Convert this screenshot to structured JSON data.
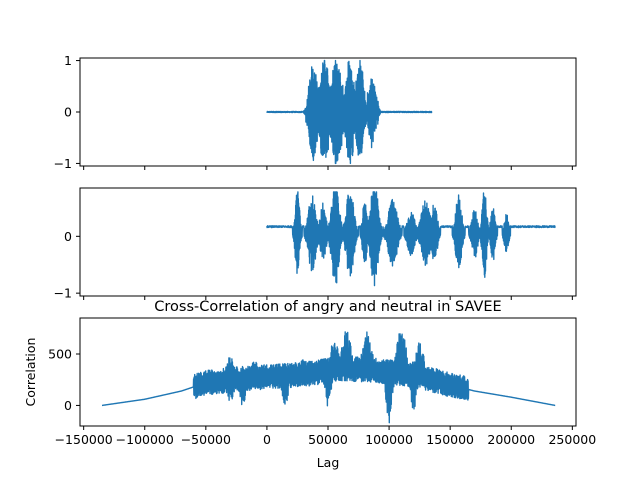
{
  "chart_data": [
    {
      "type": "line",
      "title": "",
      "xlabel": "",
      "ylabel": "",
      "x_unit": "sample index",
      "xlim": [
        -153000,
        253000
      ],
      "ylim": [
        -1.05,
        1.05
      ],
      "yticks": [
        1,
        0,
        -1
      ],
      "ytick_labels": [
        "1",
        "0",
        "−1"
      ],
      "xtick_labels_visible": false,
      "series": [
        {
          "color": "#1f77b4",
          "segments": [
            {
              "x0": 0,
              "x1": 135000,
              "mode": "flat",
              "level": 0.0,
              "noise": 0.01
            },
            {
              "x0": 30000,
              "x1": 93000,
              "mode": "burst",
              "amp": 1.0,
              "bursts": [
                {
                  "c": 38000,
                  "w": 5000,
                  "a": 0.95
                },
                {
                  "c": 47000,
                  "w": 6000,
                  "a": 1.0
                },
                {
                  "c": 57000,
                  "w": 7000,
                  "a": 1.0
                },
                {
                  "c": 68000,
                  "w": 5000,
                  "a": 1.0
                },
                {
                  "c": 76000,
                  "w": 5000,
                  "a": 0.95
                },
                {
                  "c": 86000,
                  "w": 5000,
                  "a": 0.6
                }
              ]
            }
          ]
        }
      ],
      "grid": false
    },
    {
      "type": "line",
      "title": "",
      "xlabel": "",
      "ylabel": "",
      "x_unit": "sample index",
      "xlim": [
        -153000,
        253000
      ],
      "ylim": [
        -1.05,
        0.85
      ],
      "yticks": [
        0,
        -1
      ],
      "ytick_labels": [
        "0",
        "−1"
      ],
      "xtick_labels_visible": false,
      "series": [
        {
          "color": "#1f77b4",
          "baseline": 0.17,
          "x_range": [
            0,
            236000
          ],
          "bursts": [
            {
              "c": 25000,
              "w": 3000,
              "a": 0.75
            },
            {
              "c": 37000,
              "w": 5000,
              "a": 0.7
            },
            {
              "c": 46000,
              "w": 4000,
              "a": 0.55
            },
            {
              "c": 56000,
              "w": 5000,
              "a": 0.95
            },
            {
              "c": 68000,
              "w": 5000,
              "a": 0.8
            },
            {
              "c": 80000,
              "w": 3000,
              "a": 0.6
            },
            {
              "c": 88000,
              "w": 5000,
              "a": 0.95
            },
            {
              "c": 103000,
              "w": 6000,
              "a": 0.6
            },
            {
              "c": 118000,
              "w": 5000,
              "a": 0.4
            },
            {
              "c": 130000,
              "w": 6000,
              "a": 0.6
            },
            {
              "c": 137000,
              "w": 4000,
              "a": 0.55
            },
            {
              "c": 157000,
              "w": 4000,
              "a": 0.7
            },
            {
              "c": 170000,
              "w": 4000,
              "a": 0.45
            },
            {
              "c": 178000,
              "w": 3000,
              "a": 0.8
            },
            {
              "c": 185000,
              "w": 3000,
              "a": 0.5
            },
            {
              "c": 196000,
              "w": 3000,
              "a": 0.35
            }
          ]
        }
      ],
      "grid": false
    },
    {
      "type": "line",
      "title": "Cross-Correlation of angry and neutral in SAVEE",
      "xlabel": "Lag",
      "ylabel": "Correlation",
      "xlim": [
        -153000,
        253000
      ],
      "ylim": [
        -200,
        850
      ],
      "xticks": [
        -150000,
        -100000,
        -50000,
        0,
        50000,
        100000,
        150000,
        200000,
        250000
      ],
      "xtick_labels": [
        "−150000",
        "−100000",
        "−50000",
        "0",
        "50000",
        "100000",
        "150000",
        "200000",
        "250000"
      ],
      "yticks": [
        500,
        0
      ],
      "ytick_labels": [
        "500",
        "0"
      ],
      "series": [
        {
          "color": "#1f77b4",
          "envelope": [
            {
              "x": -135000,
              "y": 0
            },
            {
              "x": -100000,
              "y": 60
            },
            {
              "x": -70000,
              "y": 140
            },
            {
              "x": -50000,
              "y": 220
            },
            {
              "x": -20000,
              "y": 260
            },
            {
              "x": 0,
              "y": 280
            },
            {
              "x": 30000,
              "y": 300
            },
            {
              "x": 60000,
              "y": 360
            },
            {
              "x": 90000,
              "y": 340
            },
            {
              "x": 120000,
              "y": 300
            },
            {
              "x": 150000,
              "y": 200
            },
            {
              "x": 170000,
              "y": 140
            },
            {
              "x": 200000,
              "y": 80
            },
            {
              "x": 236000,
              "y": 0
            }
          ],
          "noisy_range": [
            -60000,
            165000
          ],
          "peaks": [
            {
              "x": -30000,
              "y": 500
            },
            {
              "x": -10000,
              "y": 430
            },
            {
              "x": 30000,
              "y": 450
            },
            {
              "x": 55000,
              "y": 640
            },
            {
              "x": 65000,
              "y": 760
            },
            {
              "x": 82000,
              "y": 730
            },
            {
              "x": 110000,
              "y": 800
            },
            {
              "x": 125000,
              "y": 620
            }
          ],
          "troughs": [
            {
              "x": -55000,
              "y": 120
            },
            {
              "x": -30000,
              "y": 20
            },
            {
              "x": -20000,
              "y": -20
            },
            {
              "x": 15000,
              "y": -10
            },
            {
              "x": 50000,
              "y": -30
            },
            {
              "x": 100000,
              "y": -170
            },
            {
              "x": 120000,
              "y": -50
            },
            {
              "x": 140000,
              "y": 120
            }
          ]
        }
      ],
      "grid": false
    }
  ]
}
